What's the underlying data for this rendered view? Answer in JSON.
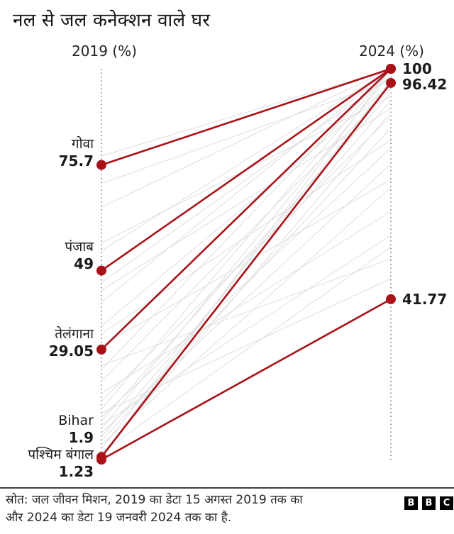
{
  "title": "नल से जल कनेक्शन वाले घर",
  "columns": {
    "left": "2019 (%)",
    "right": "2024 (%)"
  },
  "source": {
    "line1": "स्रोत: जल जीवन मिशन, 2019 का डेटा 15 अगस्त 2019 तक का",
    "line2": "और 2024 का डेटा 19 जनवरी 2024 तक का है."
  },
  "logo": {
    "b1": "B",
    "b2": "B",
    "b3": "C"
  },
  "colors": {
    "highlight": "#a81218",
    "background_line": "#dedede",
    "axis": "#8c8c8c",
    "text": "#1a1a1a"
  },
  "chart_data": {
    "type": "line",
    "subtype": "slope-chart",
    "title": "नल से जल कनेक्शन वाले घर",
    "columns": [
      "2019 (%)",
      "2024 (%)"
    ],
    "axis_range": [
      0,
      100
    ],
    "series": [
      {
        "name": "गोवा",
        "from": 75.7,
        "to": 100,
        "from_label": "75.7",
        "to_label": "100"
      },
      {
        "name": "पंजाब",
        "from": 49,
        "to": 100,
        "from_label": "49",
        "to_label": "100"
      },
      {
        "name": "तेलंगाना",
        "from": 29.05,
        "to": 100,
        "from_label": "29.05",
        "to_label": "100"
      },
      {
        "name": "Bihar",
        "from": 1.9,
        "to": 96.42,
        "from_label": "1.9",
        "to_label": "96.42"
      },
      {
        "name": "पश्चिम बंगाल",
        "from": 1.23,
        "to": 41.77,
        "from_label": "1.23",
        "to_label": "41.77"
      }
    ],
    "right_labels": [
      "100",
      "96.42",
      "41.77"
    ],
    "background_series": [
      [
        78,
        100
      ],
      [
        71,
        97
      ],
      [
        65,
        100
      ],
      [
        56,
        93
      ],
      [
        54,
        100
      ],
      [
        46,
        98
      ],
      [
        44,
        90
      ],
      [
        41,
        100
      ],
      [
        35,
        96
      ],
      [
        33,
        82
      ],
      [
        30,
        72
      ],
      [
        25,
        52
      ],
      [
        24,
        100
      ],
      [
        21,
        95
      ],
      [
        18,
        64
      ],
      [
        16,
        88
      ],
      [
        14,
        100
      ],
      [
        13,
        47
      ],
      [
        12,
        80
      ],
      [
        11,
        94
      ],
      [
        10,
        58
      ],
      [
        9,
        99
      ],
      [
        8,
        76
      ],
      [
        7,
        92
      ],
      [
        6,
        85
      ],
      [
        5,
        70
      ],
      [
        4,
        97
      ],
      [
        3,
        55
      ],
      [
        2.5,
        89
      ],
      [
        2,
        100
      ]
    ]
  }
}
